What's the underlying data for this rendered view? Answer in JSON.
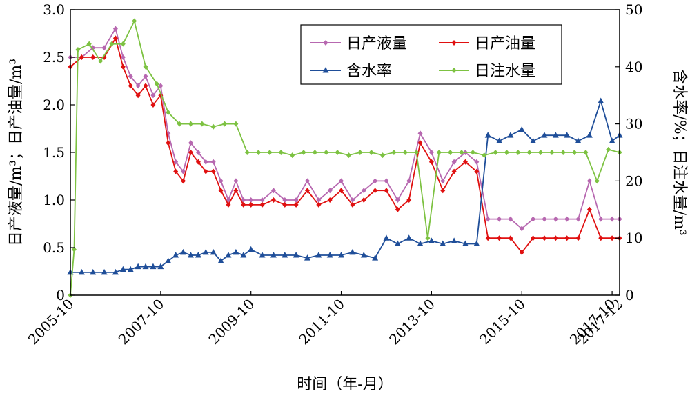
{
  "chart_data": {
    "type": "line",
    "title": "",
    "xlabel": "时间（年-月）",
    "ylabel": "日产液量/m³；日产油量/m³",
    "y2label": "含水率/%；日注水量/m³",
    "xlim": [
      "2005-10",
      "2017-12"
    ],
    "ylim": [
      0,
      3.0
    ],
    "y2lim": [
      0,
      50
    ],
    "x_ticks": [
      "2005-10",
      "2007-10",
      "2009-10",
      "2011-10",
      "2013-10",
      "2015-10",
      "2017-10",
      "2017-12"
    ],
    "y_ticks": [
      "0",
      "0.5",
      "1.0",
      "1.5",
      "2.0",
      "2.5",
      "3.0"
    ],
    "y2_ticks": [
      "0",
      "10",
      "20",
      "30",
      "40",
      "50"
    ],
    "grid": false,
    "legend": "top-right",
    "series": [
      {
        "name": "日产液量",
        "axis": "left",
        "color": "#b768b0",
        "marker": "diamond",
        "x": [
          "2005-10",
          "2006-01",
          "2006-04",
          "2006-07",
          "2006-10",
          "2006-12",
          "2007-02",
          "2007-04",
          "2007-06",
          "2007-08",
          "2007-10",
          "2007-12",
          "2008-02",
          "2008-04",
          "2008-06",
          "2008-08",
          "2008-10",
          "2008-12",
          "2009-02",
          "2009-04",
          "2009-06",
          "2009-08",
          "2009-10",
          "2010-01",
          "2010-04",
          "2010-07",
          "2010-10",
          "2011-01",
          "2011-04",
          "2011-07",
          "2011-10",
          "2012-01",
          "2012-04",
          "2012-07",
          "2012-10",
          "2013-01",
          "2013-04",
          "2013-07",
          "2013-10",
          "2014-01",
          "2014-04",
          "2014-07",
          "2014-10",
          "2015-01",
          "2015-04",
          "2015-07",
          "2015-10",
          "2016-01",
          "2016-04",
          "2016-07",
          "2016-10",
          "2017-01",
          "2017-04",
          "2017-07",
          "2017-10",
          "2017-12"
        ],
        "y": [
          2.5,
          2.5,
          2.6,
          2.6,
          2.8,
          2.5,
          2.3,
          2.2,
          2.3,
          2.1,
          2.2,
          1.7,
          1.4,
          1.3,
          1.6,
          1.5,
          1.4,
          1.4,
          1.2,
          1.0,
          1.2,
          1.0,
          1.0,
          1.0,
          1.1,
          1.0,
          1.0,
          1.2,
          1.0,
          1.1,
          1.2,
          1.0,
          1.1,
          1.2,
          1.2,
          1.0,
          1.2,
          1.7,
          1.5,
          1.2,
          1.4,
          1.5,
          1.4,
          0.8,
          0.8,
          0.8,
          0.7,
          0.8,
          0.8,
          0.8,
          0.8,
          0.8,
          1.2,
          0.8,
          0.8,
          0.8
        ]
      },
      {
        "name": "日产油量",
        "axis": "left",
        "color": "#e01010",
        "marker": "diamond",
        "x": [
          "2005-10",
          "2006-01",
          "2006-04",
          "2006-07",
          "2006-10",
          "2006-12",
          "2007-02",
          "2007-04",
          "2007-06",
          "2007-08",
          "2007-10",
          "2007-12",
          "2008-02",
          "2008-04",
          "2008-06",
          "2008-08",
          "2008-10",
          "2008-12",
          "2009-02",
          "2009-04",
          "2009-06",
          "2009-08",
          "2009-10",
          "2010-01",
          "2010-04",
          "2010-07",
          "2010-10",
          "2011-01",
          "2011-04",
          "2011-07",
          "2011-10",
          "2012-01",
          "2012-04",
          "2012-07",
          "2012-10",
          "2013-01",
          "2013-04",
          "2013-07",
          "2013-10",
          "2014-01",
          "2014-04",
          "2014-07",
          "2014-10",
          "2015-01",
          "2015-04",
          "2015-07",
          "2015-10",
          "2016-01",
          "2016-04",
          "2016-07",
          "2016-10",
          "2017-01",
          "2017-04",
          "2017-07",
          "2017-10",
          "2017-12"
        ],
        "y": [
          2.4,
          2.5,
          2.5,
          2.5,
          2.7,
          2.4,
          2.2,
          2.1,
          2.2,
          2.0,
          2.1,
          1.6,
          1.3,
          1.2,
          1.5,
          1.4,
          1.3,
          1.3,
          1.1,
          0.95,
          1.1,
          0.95,
          0.95,
          0.95,
          1.0,
          0.95,
          0.95,
          1.1,
          0.95,
          1.0,
          1.1,
          0.95,
          1.0,
          1.1,
          1.1,
          0.9,
          1.0,
          1.6,
          1.4,
          1.1,
          1.3,
          1.4,
          1.3,
          0.6,
          0.6,
          0.6,
          0.45,
          0.6,
          0.6,
          0.6,
          0.6,
          0.6,
          0.9,
          0.6,
          0.6,
          0.6
        ]
      },
      {
        "name": "含水率",
        "axis": "right",
        "color": "#1f4e99",
        "marker": "triangle",
        "x": [
          "2005-10",
          "2006-01",
          "2006-04",
          "2006-07",
          "2006-10",
          "2006-12",
          "2007-02",
          "2007-04",
          "2007-06",
          "2007-08",
          "2007-10",
          "2007-12",
          "2008-02",
          "2008-04",
          "2008-06",
          "2008-08",
          "2008-10",
          "2008-12",
          "2009-02",
          "2009-04",
          "2009-06",
          "2009-08",
          "2009-10",
          "2010-01",
          "2010-04",
          "2010-07",
          "2010-10",
          "2011-01",
          "2011-04",
          "2011-07",
          "2011-10",
          "2012-01",
          "2012-04",
          "2012-07",
          "2012-10",
          "2013-01",
          "2013-04",
          "2013-07",
          "2013-10",
          "2014-01",
          "2014-04",
          "2014-07",
          "2014-10",
          "2015-01",
          "2015-04",
          "2015-07",
          "2015-10",
          "2016-01",
          "2016-04",
          "2016-07",
          "2016-10",
          "2017-01",
          "2017-04",
          "2017-07",
          "2017-10",
          "2017-12"
        ],
        "y": [
          4,
          4,
          4,
          4,
          4,
          4.5,
          4.5,
          5,
          5,
          5,
          5,
          6,
          7,
          7.5,
          7,
          7,
          7.5,
          7.5,
          6,
          7,
          7.5,
          7,
          8,
          7,
          7,
          7,
          7,
          6.5,
          7,
          7,
          7,
          7.5,
          7,
          6.5,
          10,
          9,
          10,
          9,
          9.5,
          9,
          9.5,
          9,
          9,
          28,
          27,
          28,
          29,
          27,
          28,
          28,
          28,
          27,
          28,
          34,
          27,
          28
        ]
      },
      {
        "name": "日注水量",
        "axis": "right",
        "color": "#7dc242",
        "marker": "diamond",
        "x": [
          "2005-10",
          "2005-11",
          "2005-12",
          "2006-03",
          "2006-06",
          "2006-09",
          "2006-12",
          "2007-03",
          "2007-06",
          "2007-09",
          "2007-12",
          "2008-03",
          "2008-06",
          "2008-09",
          "2008-12",
          "2009-03",
          "2009-06",
          "2009-09",
          "2009-12",
          "2010-03",
          "2010-06",
          "2010-09",
          "2010-12",
          "2011-03",
          "2011-06",
          "2011-09",
          "2011-12",
          "2012-03",
          "2012-06",
          "2012-09",
          "2012-12",
          "2013-03",
          "2013-06",
          "2013-09",
          "2013-12",
          "2014-03",
          "2014-06",
          "2014-09",
          "2014-12",
          "2015-03",
          "2015-06",
          "2015-09",
          "2015-12",
          "2016-03",
          "2016-06",
          "2016-09",
          "2016-12",
          "2017-03",
          "2017-06",
          "2017-09",
          "2017-12"
        ],
        "y": [
          0,
          8,
          43,
          44,
          41,
          44,
          44,
          48,
          40,
          37,
          32,
          30,
          30,
          30,
          29.5,
          30,
          30,
          25,
          25,
          25,
          25,
          24.5,
          25,
          25,
          25,
          25,
          24.5,
          25,
          25,
          24.5,
          25,
          25,
          25,
          10,
          25,
          25,
          25,
          25,
          24.5,
          25,
          25,
          25,
          25,
          25,
          25,
          25,
          25,
          25,
          20,
          25.5,
          25
        ]
      }
    ]
  }
}
